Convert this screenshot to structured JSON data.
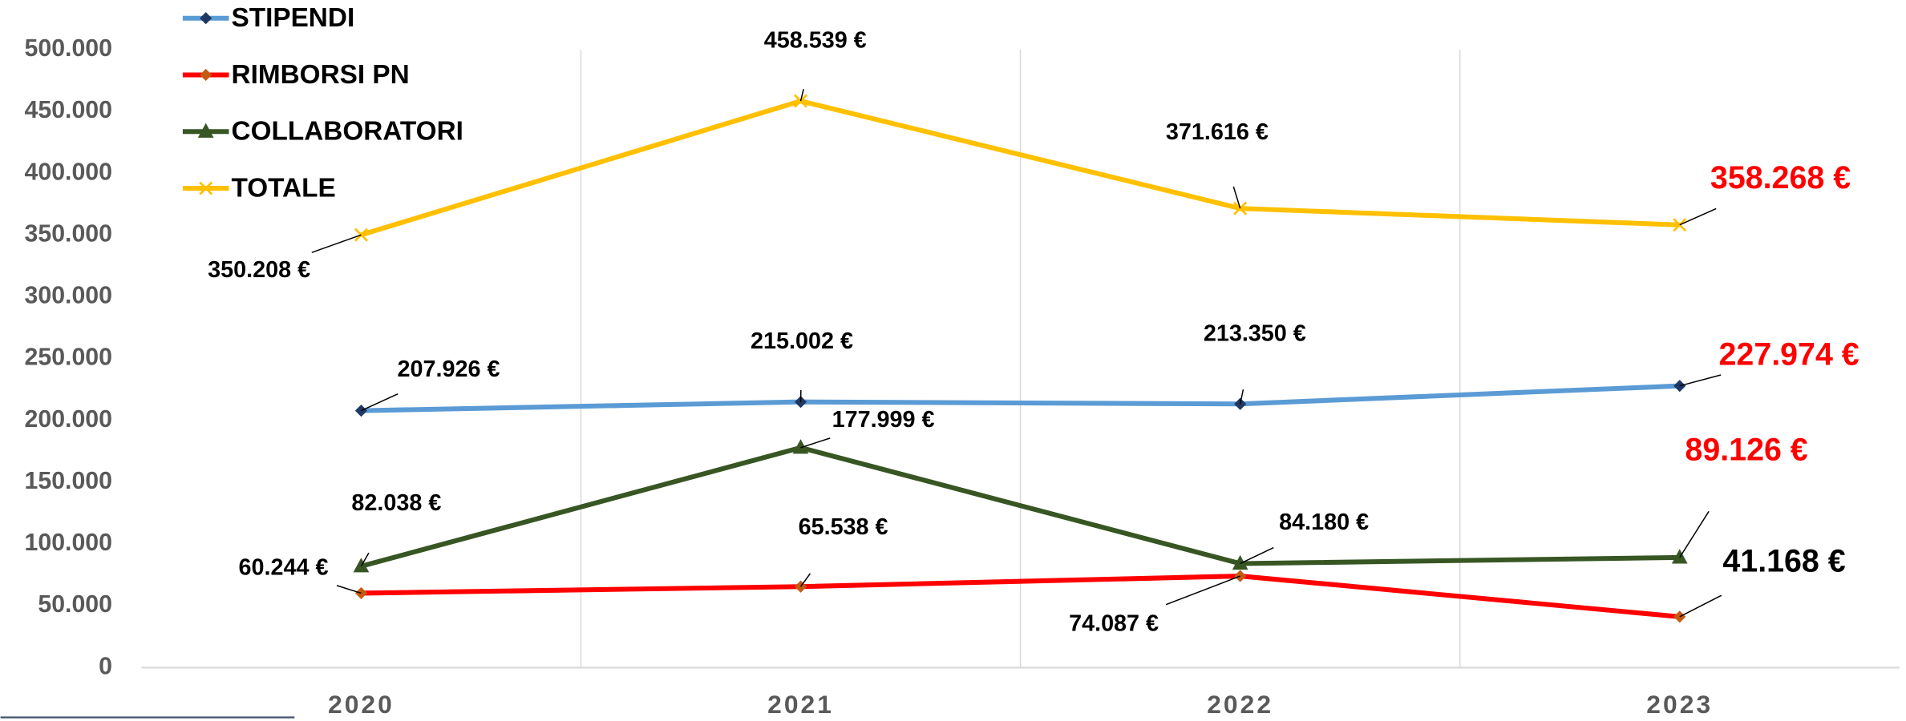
{
  "chart_data": {
    "type": "line",
    "categories": [
      "2020",
      "2021",
      "2022",
      "2023"
    ],
    "series": [
      {
        "name": "STIPENDI",
        "color": "#5b9bd5",
        "marker": "diamond",
        "marker_color": "#1f3864",
        "values": [
          207926,
          215002,
          213350,
          227974
        ],
        "value_labels": [
          "207.926 €",
          "215.002 €",
          "213.350 €",
          "227.974 €"
        ]
      },
      {
        "name": "RIMBORSI PN",
        "color": "#ff0000",
        "marker": "diamond",
        "marker_color": "#c55a11",
        "values": [
          60244,
          65538,
          74087,
          41168
        ],
        "value_labels": [
          "60.244 €",
          "65.538 €",
          "74.087 €",
          "41.168 €"
        ]
      },
      {
        "name": "COLLABORATORI",
        "color": "#375623",
        "marker": "triangle",
        "marker_color": "#375623",
        "values": [
          82038,
          177999,
          84180,
          89126
        ],
        "value_labels": [
          "82.038 €",
          "177.999 €",
          "84.180 €",
          "89.126 €"
        ]
      },
      {
        "name": "TOTALE",
        "color": "#ffc000",
        "marker": "x",
        "marker_color": "#ffc000",
        "values": [
          350208,
          458539,
          371616,
          358268
        ],
        "value_labels": [
          "350.208 €",
          "458.539 €",
          "371.616 €",
          "358.268 €"
        ]
      }
    ],
    "ylim": [
      0,
      500000
    ],
    "yticks": [
      0,
      {
        "value": 50000,
        "label": "50.000"
      },
      {
        "value": 100000,
        "label": "100.000"
      },
      {
        "value": 150000,
        "label": "150.000"
      },
      {
        "value": 200000,
        "label": "200.000"
      },
      {
        "value": 250000,
        "label": "250.000"
      },
      {
        "value": 300000,
        "label": "300.000"
      },
      {
        "value": 350000,
        "label": "350.000"
      },
      {
        "value": 400000,
        "label": "400.000"
      },
      {
        "value": 450000,
        "label": "450.000"
      },
      {
        "value": 500000,
        "label": "500.000"
      }
    ],
    "grid": true,
    "legend": "top-left"
  }
}
